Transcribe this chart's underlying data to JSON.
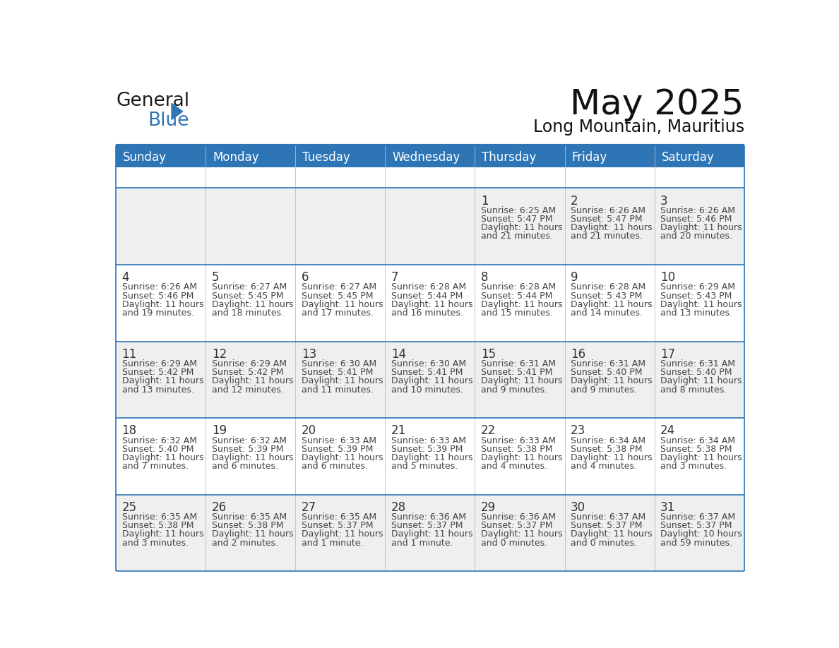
{
  "title": "May 2025",
  "subtitle": "Long Mountain, Mauritius",
  "header_bg": "#2E75B6",
  "header_text_color": "#FFFFFF",
  "days_of_week": [
    "Sunday",
    "Monday",
    "Tuesday",
    "Wednesday",
    "Thursday",
    "Friday",
    "Saturday"
  ],
  "bg_color": "#FFFFFF",
  "cell_bg_light": "#EFEFEF",
  "cell_bg_white": "#FFFFFF",
  "border_color": "#2E75B6",
  "text_color": "#444444",
  "day_num_color": "#333333",
  "calendar": [
    [
      null,
      null,
      null,
      null,
      {
        "day": 1,
        "sunrise": "6:25 AM",
        "sunset": "5:47 PM",
        "daylight_h": "11 hours",
        "daylight_m": "and 21 minutes."
      },
      {
        "day": 2,
        "sunrise": "6:26 AM",
        "sunset": "5:47 PM",
        "daylight_h": "11 hours",
        "daylight_m": "and 21 minutes."
      },
      {
        "day": 3,
        "sunrise": "6:26 AM",
        "sunset": "5:46 PM",
        "daylight_h": "11 hours",
        "daylight_m": "and 20 minutes."
      }
    ],
    [
      {
        "day": 4,
        "sunrise": "6:26 AM",
        "sunset": "5:46 PM",
        "daylight_h": "11 hours",
        "daylight_m": "and 19 minutes."
      },
      {
        "day": 5,
        "sunrise": "6:27 AM",
        "sunset": "5:45 PM",
        "daylight_h": "11 hours",
        "daylight_m": "and 18 minutes."
      },
      {
        "day": 6,
        "sunrise": "6:27 AM",
        "sunset": "5:45 PM",
        "daylight_h": "11 hours",
        "daylight_m": "and 17 minutes."
      },
      {
        "day": 7,
        "sunrise": "6:28 AM",
        "sunset": "5:44 PM",
        "daylight_h": "11 hours",
        "daylight_m": "and 16 minutes."
      },
      {
        "day": 8,
        "sunrise": "6:28 AM",
        "sunset": "5:44 PM",
        "daylight_h": "11 hours",
        "daylight_m": "and 15 minutes."
      },
      {
        "day": 9,
        "sunrise": "6:28 AM",
        "sunset": "5:43 PM",
        "daylight_h": "11 hours",
        "daylight_m": "and 14 minutes."
      },
      {
        "day": 10,
        "sunrise": "6:29 AM",
        "sunset": "5:43 PM",
        "daylight_h": "11 hours",
        "daylight_m": "and 13 minutes."
      }
    ],
    [
      {
        "day": 11,
        "sunrise": "6:29 AM",
        "sunset": "5:42 PM",
        "daylight_h": "11 hours",
        "daylight_m": "and 13 minutes."
      },
      {
        "day": 12,
        "sunrise": "6:29 AM",
        "sunset": "5:42 PM",
        "daylight_h": "11 hours",
        "daylight_m": "and 12 minutes."
      },
      {
        "day": 13,
        "sunrise": "6:30 AM",
        "sunset": "5:41 PM",
        "daylight_h": "11 hours",
        "daylight_m": "and 11 minutes."
      },
      {
        "day": 14,
        "sunrise": "6:30 AM",
        "sunset": "5:41 PM",
        "daylight_h": "11 hours",
        "daylight_m": "and 10 minutes."
      },
      {
        "day": 15,
        "sunrise": "6:31 AM",
        "sunset": "5:41 PM",
        "daylight_h": "11 hours",
        "daylight_m": "and 9 minutes."
      },
      {
        "day": 16,
        "sunrise": "6:31 AM",
        "sunset": "5:40 PM",
        "daylight_h": "11 hours",
        "daylight_m": "and 9 minutes."
      },
      {
        "day": 17,
        "sunrise": "6:31 AM",
        "sunset": "5:40 PM",
        "daylight_h": "11 hours",
        "daylight_m": "and 8 minutes."
      }
    ],
    [
      {
        "day": 18,
        "sunrise": "6:32 AM",
        "sunset": "5:40 PM",
        "daylight_h": "11 hours",
        "daylight_m": "and 7 minutes."
      },
      {
        "day": 19,
        "sunrise": "6:32 AM",
        "sunset": "5:39 PM",
        "daylight_h": "11 hours",
        "daylight_m": "and 6 minutes."
      },
      {
        "day": 20,
        "sunrise": "6:33 AM",
        "sunset": "5:39 PM",
        "daylight_h": "11 hours",
        "daylight_m": "and 6 minutes."
      },
      {
        "day": 21,
        "sunrise": "6:33 AM",
        "sunset": "5:39 PM",
        "daylight_h": "11 hours",
        "daylight_m": "and 5 minutes."
      },
      {
        "day": 22,
        "sunrise": "6:33 AM",
        "sunset": "5:38 PM",
        "daylight_h": "11 hours",
        "daylight_m": "and 4 minutes."
      },
      {
        "day": 23,
        "sunrise": "6:34 AM",
        "sunset": "5:38 PM",
        "daylight_h": "11 hours",
        "daylight_m": "and 4 minutes."
      },
      {
        "day": 24,
        "sunrise": "6:34 AM",
        "sunset": "5:38 PM",
        "daylight_h": "11 hours",
        "daylight_m": "and 3 minutes."
      }
    ],
    [
      {
        "day": 25,
        "sunrise": "6:35 AM",
        "sunset": "5:38 PM",
        "daylight_h": "11 hours",
        "daylight_m": "and 3 minutes."
      },
      {
        "day": 26,
        "sunrise": "6:35 AM",
        "sunset": "5:38 PM",
        "daylight_h": "11 hours",
        "daylight_m": "and 2 minutes."
      },
      {
        "day": 27,
        "sunrise": "6:35 AM",
        "sunset": "5:37 PM",
        "daylight_h": "11 hours",
        "daylight_m": "and 1 minute."
      },
      {
        "day": 28,
        "sunrise": "6:36 AM",
        "sunset": "5:37 PM",
        "daylight_h": "11 hours",
        "daylight_m": "and 1 minute."
      },
      {
        "day": 29,
        "sunrise": "6:36 AM",
        "sunset": "5:37 PM",
        "daylight_h": "11 hours",
        "daylight_m": "and 0 minutes."
      },
      {
        "day": 30,
        "sunrise": "6:37 AM",
        "sunset": "5:37 PM",
        "daylight_h": "11 hours",
        "daylight_m": "and 0 minutes."
      },
      {
        "day": 31,
        "sunrise": "6:37 AM",
        "sunset": "5:37 PM",
        "daylight_h": "10 hours",
        "daylight_m": "and 59 minutes."
      }
    ]
  ],
  "logo_text_general": "General",
  "logo_text_blue": "Blue",
  "logo_color_general": "#1a1a1a",
  "logo_color_blue": "#2E75B6",
  "logo_triangle_color": "#2E75B6",
  "title_fontsize": 36,
  "subtitle_fontsize": 17,
  "header_fontsize": 12,
  "daynum_fontsize": 12,
  "cell_fontsize": 9
}
